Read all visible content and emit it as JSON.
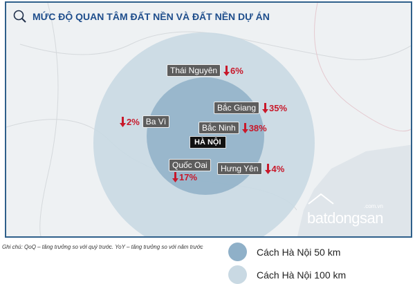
{
  "title": "MỨC ĐỘ QUAN TÂM ĐẤT NỀN VÀ ĐẤT NỀN DỰ ÁN",
  "center": "HÀ NỘI",
  "locations": [
    {
      "name": "Thái Nguyên",
      "change": "6%",
      "direction": "down"
    },
    {
      "name": "Bắc Giang",
      "change": "35%",
      "direction": "down"
    },
    {
      "name": "Bắc Ninh",
      "change": "38%",
      "direction": "down"
    },
    {
      "name": "Ba Vì",
      "change": "2%",
      "direction": "down"
    },
    {
      "name": "Quốc Oai",
      "change": "17%",
      "direction": "down"
    },
    {
      "name": "Hưng Yên",
      "change": "4%",
      "direction": "down"
    }
  ],
  "logo": {
    "brand": "batdongsan",
    "suffix": ".com.vn"
  },
  "note": "Ghi chú: QoQ – tăng trưởng so với quý trước. YoY – tăng trưởng so với năm trước",
  "legend": [
    {
      "label": "Cách Hà Nội 50 km",
      "color": "#8fb0c8"
    },
    {
      "label": "Cách Hà Nội 100 km",
      "color": "#c9d9e3"
    }
  ],
  "colors": {
    "down": "#c8182a",
    "frame": "#2e5f8a",
    "title": "#1f4e8c"
  }
}
